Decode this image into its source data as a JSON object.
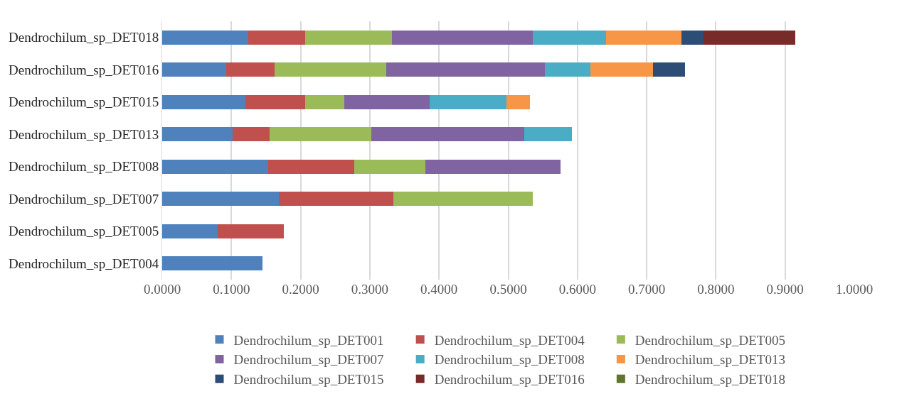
{
  "chart_data": {
    "type": "bar",
    "orientation": "horizontal",
    "stacked": true,
    "categories": [
      "Dendrochilum_sp_DET018",
      "Dendrochilum_sp_DET016",
      "Dendrochilum_sp_DET015",
      "Dendrochilum_sp_DET013",
      "Dendrochilum_sp_DET008",
      "Dendrochilum_sp_DET007",
      "Dendrochilum_sp_DET005",
      "Dendrochilum_sp_DET004"
    ],
    "series": [
      {
        "name": "Dendrochilum_sp_DET001",
        "color": "#4f81bd",
        "values": [
          0.124,
          0.093,
          0.12,
          0.102,
          0.153,
          0.169,
          0.08,
          0.145
        ]
      },
      {
        "name": "Dendrochilum_sp_DET004",
        "color": "#c0504d",
        "values": [
          0.083,
          0.069,
          0.087,
          0.053,
          0.125,
          0.165,
          0.096,
          null
        ]
      },
      {
        "name": "Dendrochilum_sp_DET005",
        "color": "#9bbb59",
        "values": [
          0.125,
          0.162,
          0.056,
          0.147,
          0.102,
          0.201,
          null,
          null
        ]
      },
      {
        "name": "Dendrochilum_sp_DET007",
        "color": "#8064a2",
        "values": [
          0.203,
          0.229,
          0.123,
          0.221,
          0.196,
          null,
          null,
          null
        ]
      },
      {
        "name": "Dendrochilum_sp_DET008",
        "color": "#4bacc6",
        "values": [
          0.106,
          0.066,
          0.111,
          0.069,
          null,
          null,
          null,
          null
        ]
      },
      {
        "name": "Dendrochilum_sp_DET013",
        "color": "#f79646",
        "values": [
          0.109,
          0.09,
          0.034,
          null,
          null,
          null,
          null,
          null
        ]
      },
      {
        "name": "Dendrochilum_sp_DET015",
        "color": "#2c4d75",
        "values": [
          0.032,
          0.046,
          null,
          null,
          null,
          null,
          null,
          null
        ]
      },
      {
        "name": "Dendrochilum_sp_DET016",
        "color": "#772c2a",
        "values": [
          0.133,
          null,
          null,
          null,
          null,
          null,
          null,
          null
        ]
      },
      {
        "name": "Dendrochilum_sp_DET018",
        "color": "#5f7530",
        "values": [
          null,
          null,
          null,
          null,
          null,
          null,
          null,
          null
        ]
      }
    ],
    "xlim": [
      0,
      1
    ],
    "xticks": [
      {
        "value": 0,
        "label": "0.0000"
      },
      {
        "value": 0.1,
        "label": "0.1000"
      },
      {
        "value": 0.2,
        "label": "0.2000"
      },
      {
        "value": 0.3,
        "label": "0.3000"
      },
      {
        "value": 0.4,
        "label": "0.4000"
      },
      {
        "value": 0.5,
        "label": "0.5000"
      },
      {
        "value": 0.6,
        "label": "0.6000"
      },
      {
        "value": 0.7,
        "label": "0.7000"
      },
      {
        "value": 0.8,
        "label": "0.8000"
      },
      {
        "value": 0.9,
        "label": "0.9000"
      },
      {
        "value": 1,
        "label": "1.0000"
      }
    ],
    "grid": "x",
    "legend": "bottom"
  }
}
